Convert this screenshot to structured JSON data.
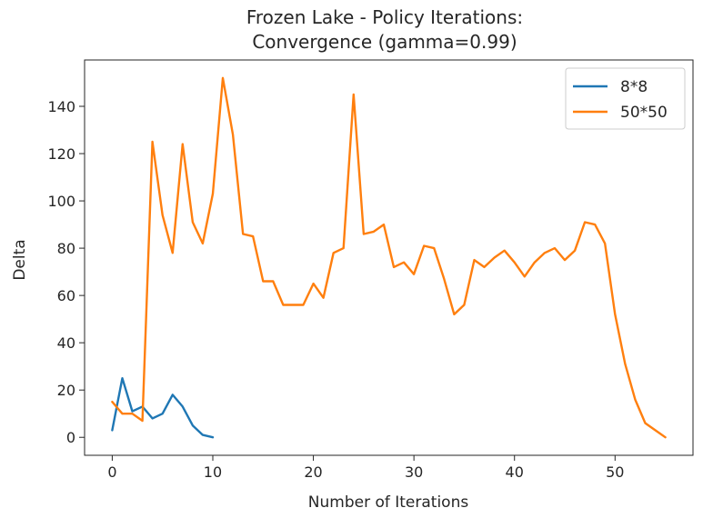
{
  "chart_data": {
    "type": "line",
    "title_lines": [
      "Frozen Lake - Policy Iterations:",
      "Convergence (gamma=0.99)"
    ],
    "xlabel": "Number of Iterations",
    "ylabel": "Delta",
    "xlim": [
      -2.75,
      57.75
    ],
    "ylim": [
      -7.6,
      159.6
    ],
    "xticks": [
      0,
      10,
      20,
      30,
      40,
      50
    ],
    "yticks": [
      0,
      20,
      40,
      60,
      80,
      100,
      120,
      140
    ],
    "grid": false,
    "legend_position": "top-right",
    "series": [
      {
        "name": "8*8",
        "color": "#1f77b4",
        "x": [
          0,
          1,
          2,
          3,
          4,
          5,
          6,
          7,
          8,
          9,
          10
        ],
        "y": [
          3,
          25,
          11,
          13,
          8,
          10,
          18,
          13,
          5,
          1,
          0
        ]
      },
      {
        "name": "50*50",
        "color": "#ff7f0e",
        "x": [
          0,
          1,
          2,
          3,
          4,
          5,
          6,
          7,
          8,
          9,
          10,
          11,
          12,
          13,
          14,
          15,
          16,
          17,
          18,
          19,
          20,
          21,
          22,
          23,
          24,
          25,
          26,
          27,
          28,
          29,
          30,
          31,
          32,
          33,
          34,
          35,
          36,
          37,
          38,
          39,
          40,
          41,
          42,
          43,
          44,
          45,
          46,
          47,
          48,
          49,
          50,
          51,
          52,
          53,
          54,
          55
        ],
        "y": [
          15,
          10,
          10,
          7,
          125,
          94,
          78,
          124,
          91,
          82,
          103,
          152,
          128,
          86,
          85,
          66,
          66,
          56,
          56,
          56,
          65,
          59,
          78,
          80,
          145,
          86,
          87,
          90,
          72,
          74,
          69,
          81,
          80,
          67,
          52,
          56,
          75,
          72,
          76,
          79,
          74,
          68,
          74,
          78,
          80,
          75,
          79,
          91,
          90,
          82,
          52,
          31,
          16,
          6,
          3,
          0
        ]
      }
    ]
  }
}
